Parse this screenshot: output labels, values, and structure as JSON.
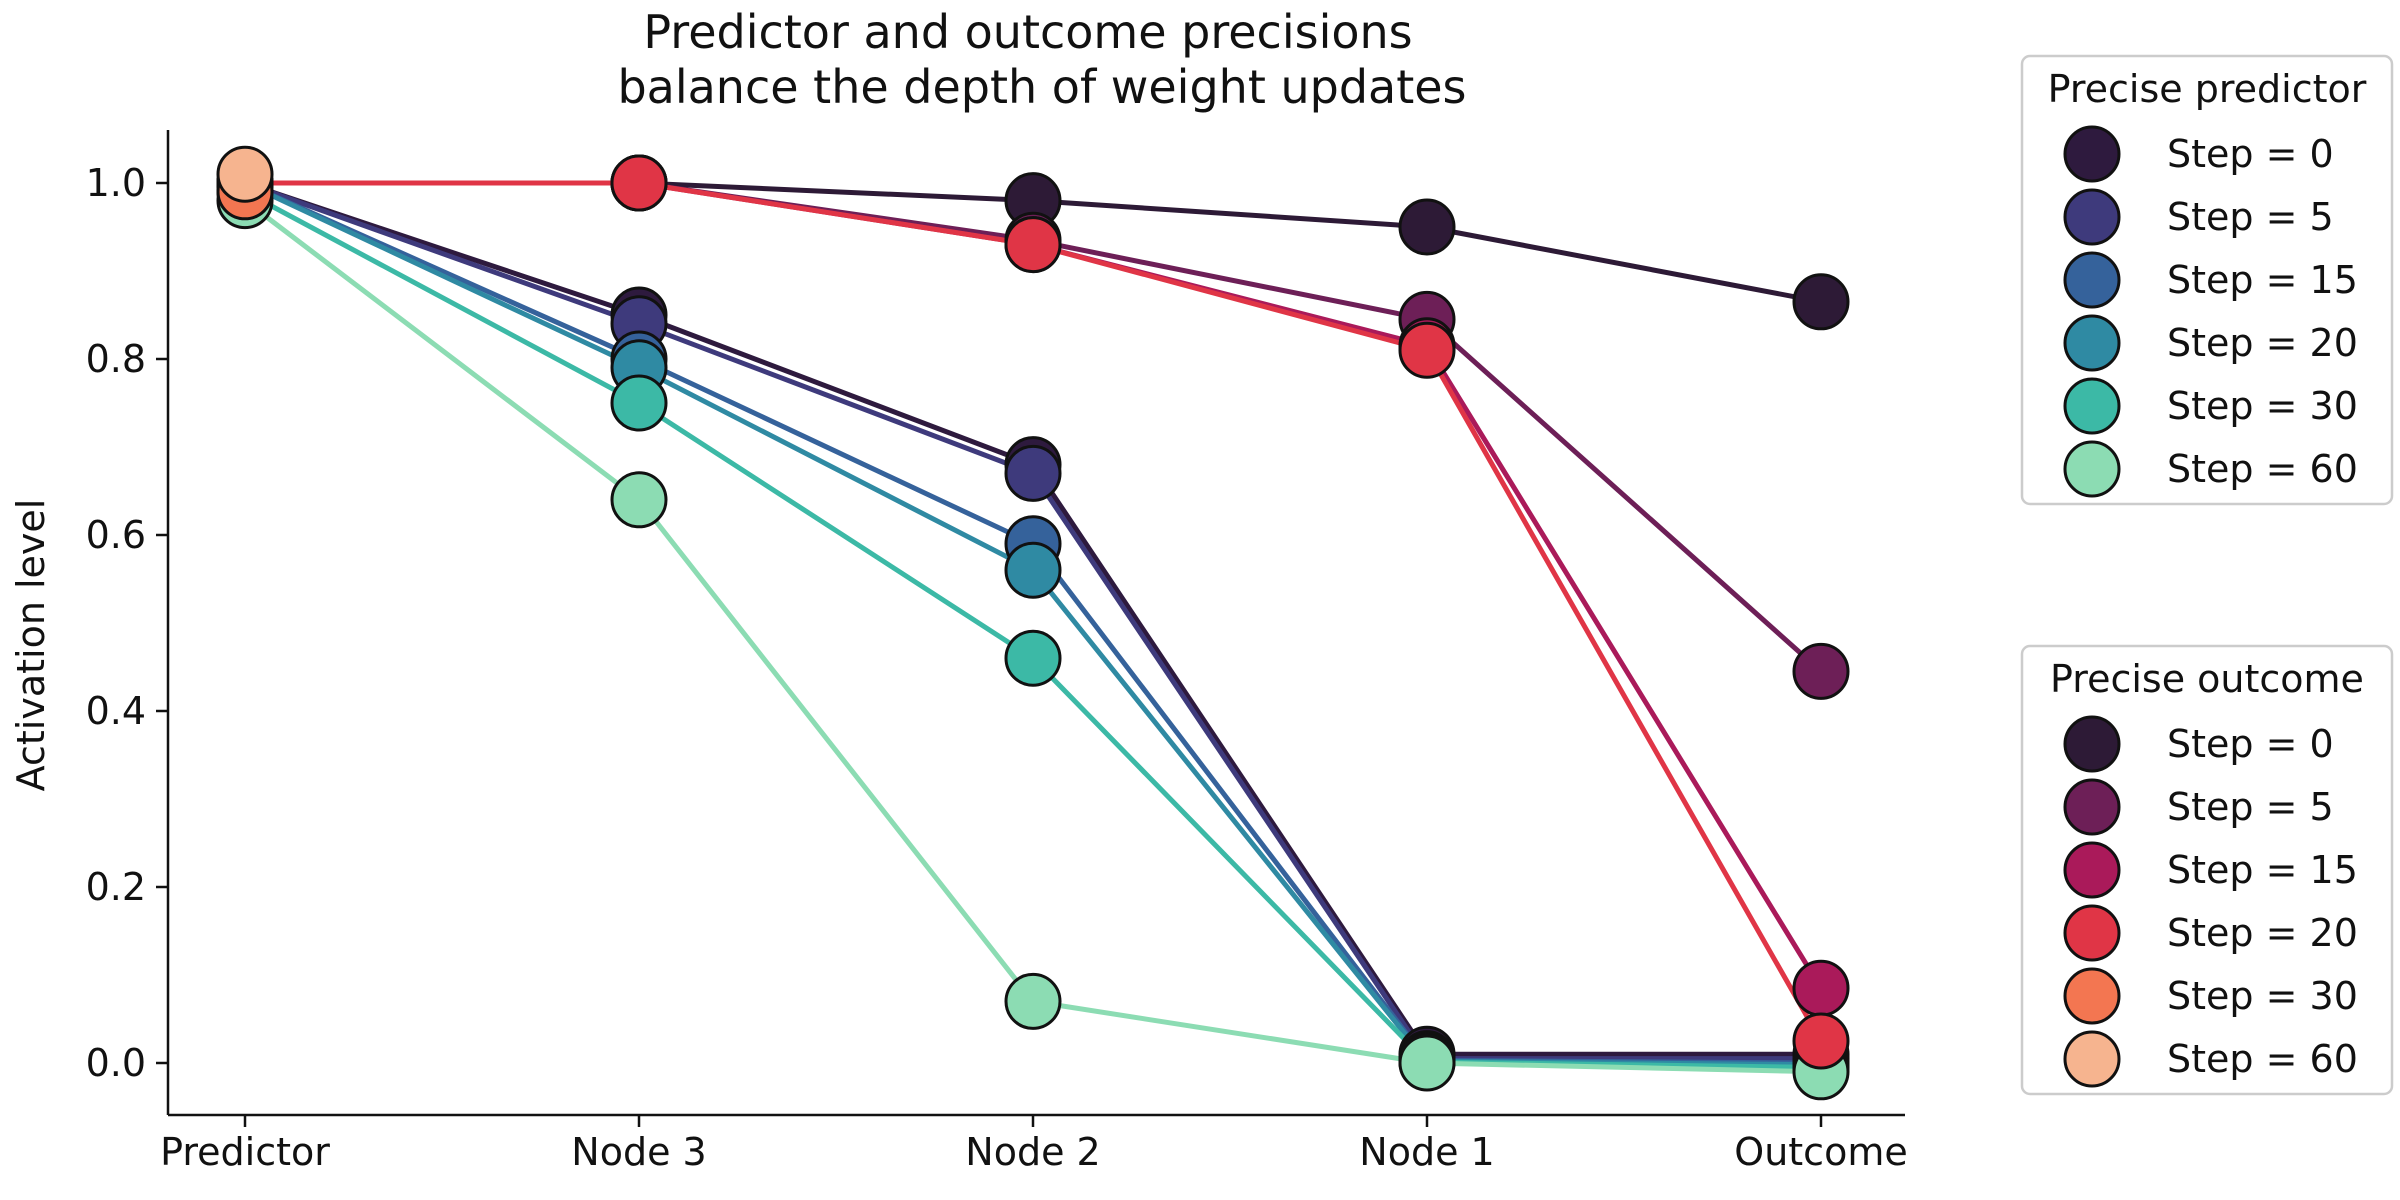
{
  "chart_data": {
    "type": "line",
    "title_lines": [
      "Predictor and outcome precisions",
      "balance the depth of weight updates"
    ],
    "xlabel": "",
    "ylabel": "Activation level",
    "categories": [
      "Predictor",
      "Node 3",
      "Node 2",
      "Node 1",
      "Outcome"
    ],
    "ylim": [
      -0.06,
      1.06
    ],
    "yticks": [
      "0.0",
      "0.2",
      "0.4",
      "0.6",
      "0.8",
      "1.0"
    ],
    "grid": false,
    "legends": [
      {
        "title": "Precise predictor",
        "placement": "upper-right-outside",
        "series": [
          {
            "name": "Step = 0",
            "color": "#2e1a3e",
            "values": [
              1.0,
              0.85,
              0.68,
              0.01,
              0.01
            ]
          },
          {
            "name": "Step = 5",
            "color": "#3e3a7c",
            "values": [
              1.0,
              0.84,
              0.67,
              0.005,
              0.005
            ]
          },
          {
            "name": "Step = 15",
            "color": "#35629b",
            "values": [
              1.0,
              0.8,
              0.59,
              0.003,
              0.0
            ]
          },
          {
            "name": "Step = 20",
            "color": "#2f8aa3",
            "values": [
              1.0,
              0.79,
              0.56,
              0.002,
              -0.002
            ]
          },
          {
            "name": "Step = 30",
            "color": "#3cb9a6",
            "values": [
              0.99,
              0.75,
              0.46,
              0.001,
              -0.005
            ]
          },
          {
            "name": "Step = 60",
            "color": "#8cdcb3",
            "values": [
              0.98,
              0.64,
              0.07,
              0.0,
              -0.01
            ]
          }
        ]
      },
      {
        "title": "Precise outcome",
        "placement": "lower-right-outside",
        "series": [
          {
            "name": "Step = 0",
            "color": "#2d1a36",
            "values": [
              1.0,
              1.0,
              0.98,
              0.95,
              0.865
            ]
          },
          {
            "name": "Step = 5",
            "color": "#6d1f57",
            "values": [
              1.0,
              1.0,
              0.935,
              0.845,
              0.445
            ]
          },
          {
            "name": "Step = 15",
            "color": "#aa1a5a",
            "values": [
              1.0,
              1.0,
              0.93,
              0.815,
              0.085
            ]
          },
          {
            "name": "Step = 20",
            "color": "#e03546",
            "values": [
              1.0,
              1.0,
              0.93,
              0.81,
              0.025
            ]
          },
          {
            "name": "Step = 30",
            "color": "#f37651",
            "values": [
              0.99,
              null,
              null,
              null,
              null
            ]
          },
          {
            "name": "Step = 60",
            "color": "#f6b48f",
            "values": [
              1.01,
              null,
              null,
              null,
              null
            ]
          }
        ]
      }
    ]
  }
}
